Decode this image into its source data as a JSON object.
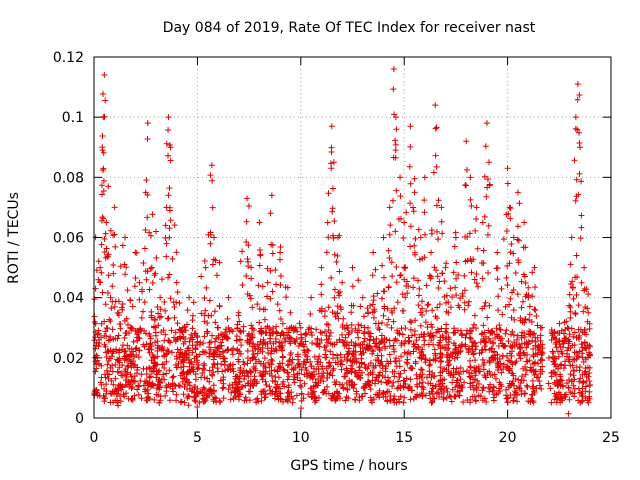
{
  "chart_data": {
    "type": "scatter",
    "title": "Day 084 of 2019, Rate Of TEC Index for receiver nast",
    "xlabel": "GPS time / hours",
    "ylabel": "ROTI / TECUs",
    "xlim": [
      0,
      25
    ],
    "ylim": [
      0,
      0.12
    ],
    "x_ticks": [
      0,
      5,
      10,
      15,
      20,
      25
    ],
    "x_tick_labels": [
      "0",
      "5",
      "10",
      "15",
      "20",
      "25"
    ],
    "y_ticks": [
      0,
      0.02,
      0.04,
      0.06,
      0.08,
      0.1,
      0.12
    ],
    "y_tick_labels": [
      "0",
      "0.02",
      "0.04",
      "0.06",
      "0.08",
      "0.1",
      "0.12"
    ],
    "grid": true,
    "marker": "plus",
    "color": "#e00000",
    "series": [
      {
        "name": "ROTI",
        "x": [
          0.1,
          0.3,
          0.4,
          0.45,
          0.5,
          0.6,
          0.8,
          1.0,
          1.2,
          1.5,
          1.8,
          2.0,
          2.2,
          2.5,
          2.6,
          2.8,
          3.0,
          3.2,
          3.5,
          3.6,
          3.7,
          4.0,
          4.3,
          4.6,
          5.0,
          5.4,
          5.7,
          5.8,
          6.0,
          6.5,
          7.0,
          7.4,
          7.6,
          8.0,
          8.4,
          8.6,
          9.0,
          9.5,
          10.0,
          10.5,
          11.0,
          11.3,
          11.5,
          11.6,
          11.8,
          12.0,
          12.5,
          13.0,
          13.5,
          14.0,
          14.3,
          14.5,
          14.6,
          14.8,
          15.0,
          15.3,
          15.5,
          15.8,
          16.0,
          16.3,
          16.5,
          16.8,
          17.0,
          17.5,
          18.0,
          18.2,
          18.5,
          18.8,
          19.0,
          19.1,
          19.5,
          20.0,
          20.1,
          20.3,
          20.5,
          20.8,
          21.0,
          21.3,
          21.6,
          22.0,
          22.3,
          22.6,
          22.9,
          23.1,
          23.3,
          23.4,
          23.5,
          23.7,
          23.9
        ],
        "y": [
          0.018,
          0.05,
          0.09,
          0.1,
          0.114,
          0.065,
          0.04,
          0.07,
          0.035,
          0.06,
          0.03,
          0.055,
          0.045,
          0.075,
          0.098,
          0.05,
          0.062,
          0.04,
          0.07,
          0.1,
          0.09,
          0.045,
          0.03,
          0.04,
          0.025,
          0.05,
          0.084,
          0.06,
          0.03,
          0.04,
          0.035,
          0.073,
          0.05,
          0.065,
          0.045,
          0.074,
          0.055,
          0.035,
          0.03,
          0.04,
          0.05,
          0.065,
          0.097,
          0.085,
          0.06,
          0.045,
          0.05,
          0.04,
          0.055,
          0.06,
          0.07,
          0.116,
          0.1,
          0.08,
          0.065,
          0.097,
          0.075,
          0.06,
          0.08,
          0.055,
          0.104,
          0.07,
          0.05,
          0.06,
          0.092,
          0.08,
          0.07,
          0.065,
          0.098,
          0.085,
          0.055,
          0.083,
          0.07,
          0.06,
          0.075,
          0.065,
          0.04,
          0.05,
          0.03,
          0.02,
          0.018,
          0.022,
          0.03,
          0.06,
          0.1,
          0.111,
          0.09,
          0.05,
          0.035
        ]
      }
    ],
    "baseline_range": [
      0.005,
      0.03
    ],
    "gap_hours": [
      21.7,
      22.1
    ]
  }
}
